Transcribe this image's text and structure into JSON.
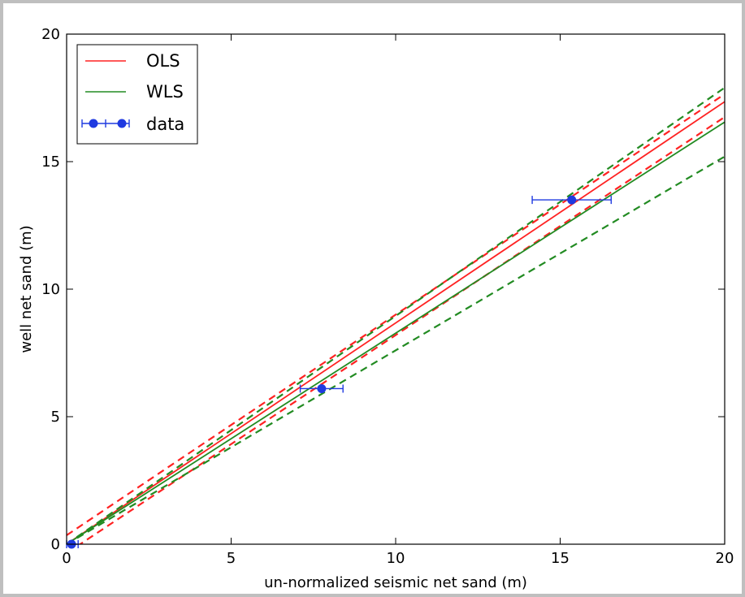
{
  "chart_data": {
    "type": "line",
    "xlabel": "un-normalized seismic net sand (m)",
    "ylabel": "well net sand (m)",
    "xlim": [
      0,
      20
    ],
    "ylim": [
      0,
      20
    ],
    "xticks": [
      0,
      5,
      10,
      15,
      20
    ],
    "yticks": [
      0,
      5,
      10,
      15,
      20
    ],
    "x_tick_labels": [
      "0",
      "5",
      "10",
      "15",
      "20"
    ],
    "y_tick_labels": [
      "0",
      "5",
      "10",
      "15",
      "20"
    ],
    "grid": false,
    "legend_position": "top-left",
    "legend": {
      "ols": "OLS",
      "wls": "WLS",
      "data": "data"
    },
    "series": [
      {
        "name": "OLS",
        "kind": "fit",
        "color": "#ff2222",
        "style": "solid",
        "x": [
          0,
          20
        ],
        "y": [
          0.0,
          17.35
        ]
      },
      {
        "kind": "ci",
        "of": "OLS",
        "color": "#ff2222",
        "style": "dashed",
        "x": [
          0,
          20
        ],
        "y": [
          0.35,
          17.65
        ]
      },
      {
        "kind": "ci",
        "of": "OLS",
        "color": "#ff2222",
        "style": "dashed",
        "x": [
          0,
          20
        ],
        "y": [
          -0.35,
          16.75
        ]
      },
      {
        "name": "WLS",
        "kind": "fit",
        "color": "#228b22",
        "style": "solid",
        "x": [
          0,
          20
        ],
        "y": [
          0.0,
          16.55
        ]
      },
      {
        "kind": "ci",
        "of": "WLS",
        "color": "#228b22",
        "style": "dashed",
        "x": [
          0,
          20
        ],
        "y": [
          0.0,
          17.9
        ]
      },
      {
        "kind": "ci",
        "of": "WLS",
        "color": "#228b22",
        "style": "dashed",
        "x": [
          0,
          20
        ],
        "y": [
          0.0,
          15.2
        ]
      }
    ],
    "points": [
      {
        "x": 0.15,
        "y": 0.0,
        "xerr_low": 0.15,
        "xerr_high": 0.2
      },
      {
        "x": 7.75,
        "y": 6.1,
        "xerr_low": 0.65,
        "xerr_high": 0.65
      },
      {
        "x": 15.35,
        "y": 13.5,
        "xerr_low": 1.2,
        "xerr_high": 1.2
      }
    ],
    "colors": {
      "ols": "#ff2222",
      "wls": "#228b22",
      "data": "#1f3ae0"
    }
  }
}
